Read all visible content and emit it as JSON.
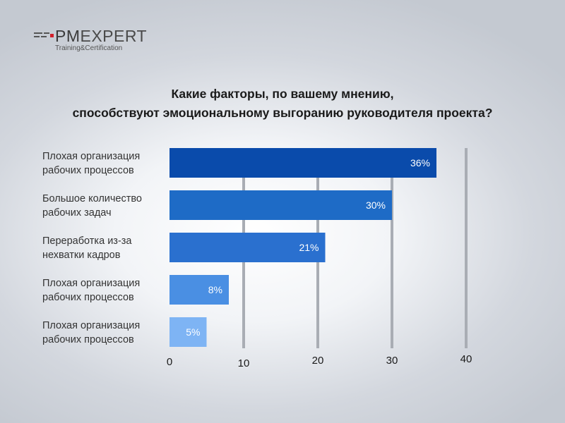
{
  "logo": {
    "brand_pm": "PM",
    "brand_rest": "EXPERT",
    "tagline": "Training&Certification"
  },
  "chart_data": {
    "type": "bar",
    "orientation": "horizontal",
    "title_lines": [
      "Какие факторы, по вашему мнению,",
      "способствуют эмоциональному выгоранию руководителя проекта?"
    ],
    "categories": [
      [
        "Плохая организация",
        "рабочих процессов"
      ],
      [
        "Большое количество",
        "рабочих задач"
      ],
      [
        "Переработка из-за",
        "нехватки кадров"
      ],
      [
        "Плохая организация",
        "рабочих процессов"
      ],
      [
        "Плохая организация",
        "рабочих процессов"
      ]
    ],
    "values": [
      36,
      30,
      21,
      8,
      5
    ],
    "value_labels": [
      "36%",
      "30%",
      "21%",
      "8%",
      "5%"
    ],
    "bar_colors": [
      "#0a4bab",
      "#1e6bc6",
      "#2a70cf",
      "#4a8fe3",
      "#7eb4f4"
    ],
    "x_ticks": [
      "0",
      "10",
      "20",
      "30",
      "40"
    ],
    "xlim": [
      0,
      40
    ],
    "grid": true
  }
}
